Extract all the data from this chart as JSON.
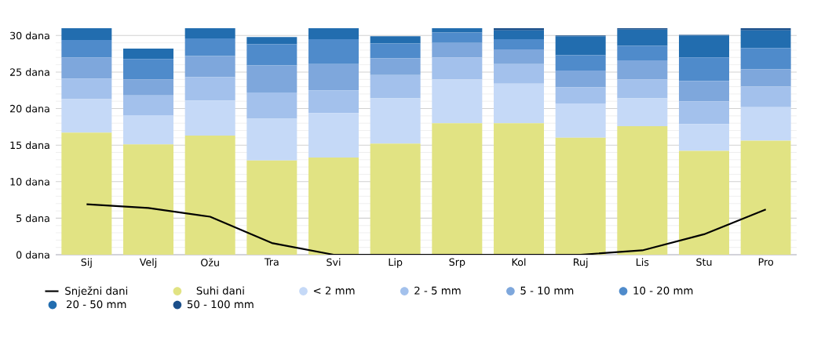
{
  "chart_data": {
    "type": "bar",
    "stacked": true,
    "categories": [
      "Sij",
      "Velj",
      "Ožu",
      "Tra",
      "Svi",
      "Lip",
      "Srp",
      "Kol",
      "Ruj",
      "Lis",
      "Stu",
      "Pro"
    ],
    "series": [
      {
        "name": "Snježni dani",
        "type": "line",
        "color": "#000000",
        "values": [
          6.9,
          6.4,
          5.2,
          1.6,
          0,
          0,
          0,
          0,
          0,
          0.6,
          2.8,
          6.2
        ]
      },
      {
        "name": "Suhi dani",
        "color": "#e1e383",
        "values": [
          16.7,
          15.1,
          16.3,
          12.9,
          13.3,
          15.2,
          18.0,
          18.0,
          16.0,
          17.6,
          14.2,
          15.6
        ]
      },
      {
        "name": "< 2 mm",
        "color": "#c5d9f7",
        "values": [
          4.6,
          4.0,
          4.8,
          5.7,
          6.1,
          6.2,
          6.0,
          5.4,
          4.7,
          3.8,
          3.7,
          4.6
        ]
      },
      {
        "name": "2 - 5 mm",
        "color": "#a3c1ec",
        "values": [
          2.8,
          2.7,
          3.2,
          3.6,
          3.1,
          3.2,
          3.0,
          2.7,
          2.2,
          2.6,
          3.1,
          2.8
        ]
      },
      {
        "name": "5 - 10 mm",
        "color": "#7ea7dc",
        "values": [
          2.9,
          2.2,
          2.9,
          3.7,
          3.6,
          2.3,
          2.0,
          2.0,
          2.3,
          2.6,
          2.8,
          2.4
        ]
      },
      {
        "name": "10 - 20 mm",
        "color": "#4f8bcb",
        "values": [
          2.4,
          2.8,
          2.4,
          2.9,
          3.4,
          2.0,
          1.4,
          1.4,
          2.1,
          2.0,
          3.2,
          2.9
        ]
      },
      {
        "name": "20 - 50 mm",
        "color": "#226daf",
        "values": [
          1.7,
          1.4,
          1.5,
          1.0,
          1.6,
          1.0,
          0.7,
          1.2,
          2.6,
          2.2,
          3.0,
          2.4
        ]
      },
      {
        "name": "50 - 100 mm",
        "color": "#1b4f8a",
        "values": [
          0,
          0,
          0,
          0,
          0,
          0,
          0,
          0.3,
          0.1,
          0.3,
          0.1,
          0.3
        ]
      }
    ],
    "ylim": [
      0,
      31
    ],
    "yticks": [
      {
        "value": 0,
        "label": "0 dana"
      },
      {
        "value": 5,
        "label": "5 dana"
      },
      {
        "value": 10,
        "label": "10 dana"
      },
      {
        "value": 15,
        "label": "15 dana"
      },
      {
        "value": 20,
        "label": "20 dana"
      },
      {
        "value": 25,
        "label": "25 dana"
      },
      {
        "value": 30,
        "label": "30 dana"
      }
    ],
    "grid": "y",
    "legend": "bottom"
  }
}
